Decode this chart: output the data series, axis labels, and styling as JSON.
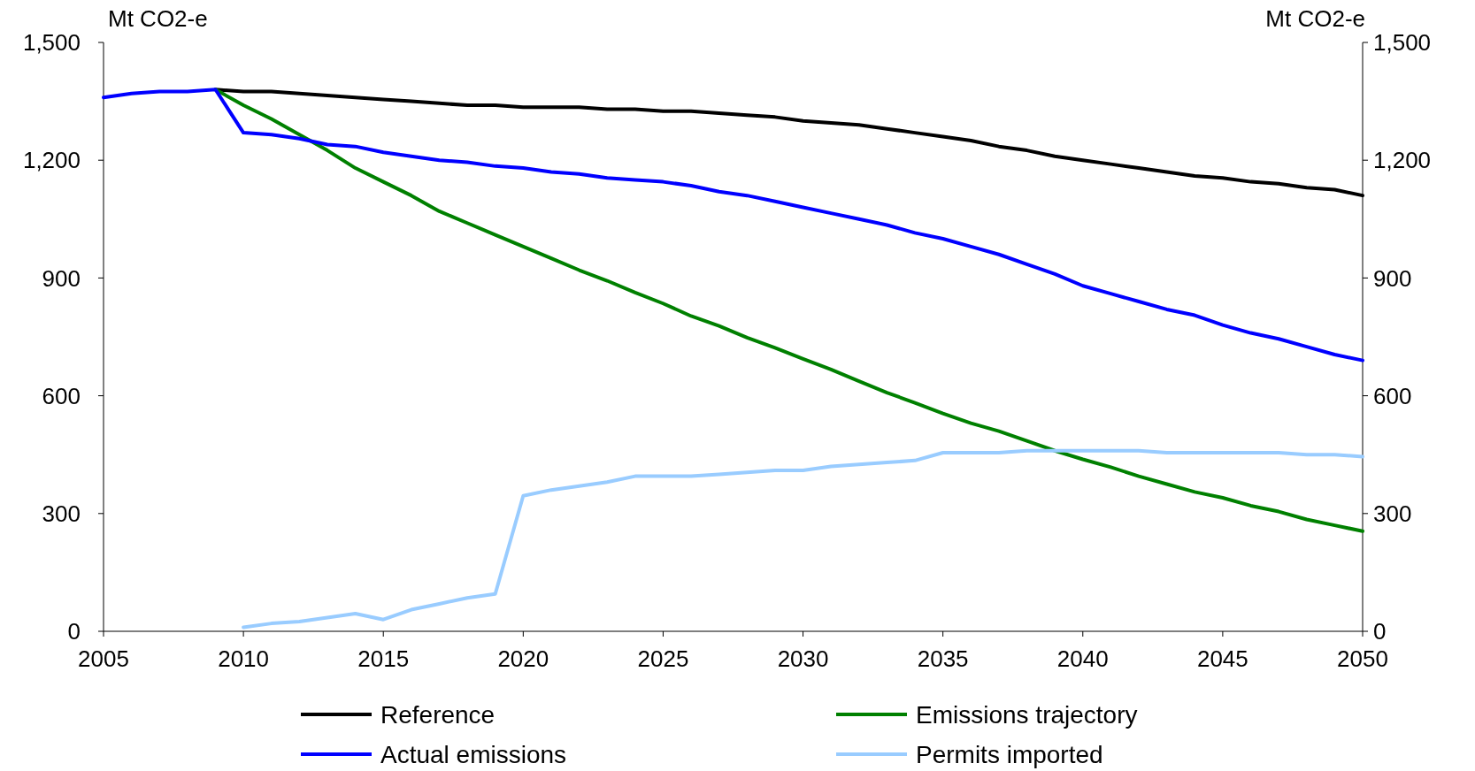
{
  "chart_data": {
    "type": "line",
    "ylabel": "Mt CO2-e",
    "y2label": "Mt CO2-e",
    "x": [
      2005,
      2006,
      2007,
      2008,
      2009,
      2010,
      2011,
      2012,
      2013,
      2014,
      2015,
      2016,
      2017,
      2018,
      2019,
      2020,
      2021,
      2022,
      2023,
      2024,
      2025,
      2026,
      2027,
      2028,
      2029,
      2030,
      2031,
      2032,
      2033,
      2034,
      2035,
      2036,
      2037,
      2038,
      2039,
      2040,
      2041,
      2042,
      2043,
      2044,
      2045,
      2046,
      2047,
      2048,
      2049,
      2050
    ],
    "xlim": [
      2005,
      2050
    ],
    "xticks": [
      2005,
      2010,
      2015,
      2020,
      2025,
      2030,
      2035,
      2040,
      2045,
      2050
    ],
    "ylim": [
      0,
      1500
    ],
    "yticks": [
      0,
      300,
      600,
      900,
      {
        "value": 1200,
        "label": "1,200"
      },
      {
        "value": 1500,
        "label": "1,500"
      }
    ],
    "y2lim": [
      0,
      1500
    ],
    "y2ticks": [
      0,
      300,
      600,
      900,
      {
        "value": 1200,
        "label": "1,200"
      },
      {
        "value": 1500,
        "label": "1,500"
      }
    ],
    "legend": "bottom",
    "grid": false,
    "marker": "none",
    "line_style": "solid",
    "series": [
      {
        "name": "Reference",
        "color": "#000000",
        "values": [
          null,
          null,
          null,
          null,
          1380,
          1375,
          1375,
          1370,
          1365,
          1360,
          1355,
          1350,
          1345,
          1340,
          1340,
          1335,
          1335,
          1335,
          1330,
          1330,
          1325,
          1325,
          1320,
          1315,
          1310,
          1300,
          1295,
          1290,
          1280,
          1270,
          1260,
          1250,
          1235,
          1225,
          1210,
          1200,
          1190,
          1180,
          1170,
          1160,
          1155,
          1145,
          1140,
          1130,
          1125,
          1110
        ]
      },
      {
        "name": "Emissions trajectory",
        "color": "#008000",
        "values": [
          null,
          null,
          null,
          null,
          1380,
          1340,
          1305,
          1265,
          1225,
          1180,
          1145,
          1110,
          1070,
          1040,
          1010,
          980,
          950,
          920,
          893,
          863,
          835,
          803,
          778,
          748,
          722,
          694,
          667,
          637,
          608,
          582,
          555,
          530,
          510,
          485,
          460,
          438,
          418,
          395,
          375,
          355,
          340,
          320,
          305,
          285,
          270,
          255
        ]
      },
      {
        "name": "Actual emissions",
        "color": "#0000ff",
        "values": [
          1360,
          1370,
          1375,
          1375,
          1380,
          1270,
          1265,
          1255,
          1240,
          1235,
          1220,
          1210,
          1200,
          1195,
          1185,
          1180,
          1170,
          1165,
          1155,
          1150,
          1145,
          1135,
          1120,
          1110,
          1095,
          1080,
          1065,
          1050,
          1035,
          1015,
          1000,
          980,
          960,
          935,
          910,
          880,
          860,
          840,
          820,
          805,
          780,
          760,
          745,
          725,
          705,
          690
        ]
      },
      {
        "name": "Permits imported",
        "color": "#99ccff",
        "values": [
          null,
          null,
          null,
          null,
          null,
          10,
          20,
          25,
          35,
          45,
          30,
          55,
          70,
          85,
          95,
          345,
          360,
          370,
          380,
          395,
          395,
          395,
          400,
          405,
          410,
          410,
          420,
          425,
          430,
          435,
          455,
          455,
          455,
          460,
          460,
          460,
          460,
          460,
          455,
          455,
          455,
          455,
          455,
          450,
          450,
          445
        ]
      }
    ]
  }
}
